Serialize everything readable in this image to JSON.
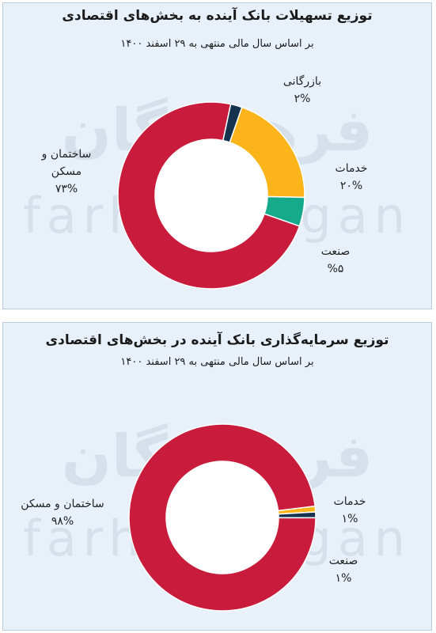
{
  "panels": [
    {
      "title": "توزیع تسهیلات بانک آینده به بخش‌های اقتصادی",
      "subtitle": "بر اساس سال مالی منتهی به ۲۹ اسفند ۱۴۰۰"
    },
    {
      "title": "توزیع  سرمایه‌گذاری بانک آینده در بخش‌های اقتصادی",
      "subtitle": "بر اساس سال مالی منتهی به ۲۹ اسفند ۱۴۰۰"
    }
  ],
  "watermark": {
    "fa": "فرهیختگان",
    "en": "farhikhtegan"
  },
  "chart_data": [
    {
      "type": "pie",
      "title": "توزیع تسهیلات بانک آینده به بخش‌های اقتصادی",
      "subtitle": "بر اساس سال مالی منتهی به ۲۹ اسفند ۱۴۰۰",
      "slices": [
        {
          "name": "بازرگانی",
          "value": 2,
          "label": "۲%",
          "color": "#15324f"
        },
        {
          "name": "خدمات",
          "value": 20,
          "label": "۲۰%",
          "color": "#fbb51a"
        },
        {
          "name": "صنعت",
          "value": 5,
          "label": "%۵",
          "color": "#16aa8d"
        },
        {
          "name": "ساختمان و مسکن",
          "value": 73,
          "label": "۷۳%",
          "color": "#c91c3c"
        }
      ]
    },
    {
      "type": "pie",
      "title": "توزیع  سرمایه‌گذاری بانک آینده در بخش‌های اقتصادی",
      "subtitle": "بر اساس سال مالی منتهی به ۲۹ اسفند ۱۴۰۰",
      "slices": [
        {
          "name": "خدمات",
          "value": 1,
          "label": "۱%",
          "color": "#fbb51a"
        },
        {
          "name": "صنعت",
          "value": 1,
          "label": "۱%",
          "color": "#15324f"
        },
        {
          "name": "ساختمان و مسکن",
          "value": 98,
          "label": "۹۸%",
          "color": "#c91c3c"
        }
      ]
    }
  ]
}
